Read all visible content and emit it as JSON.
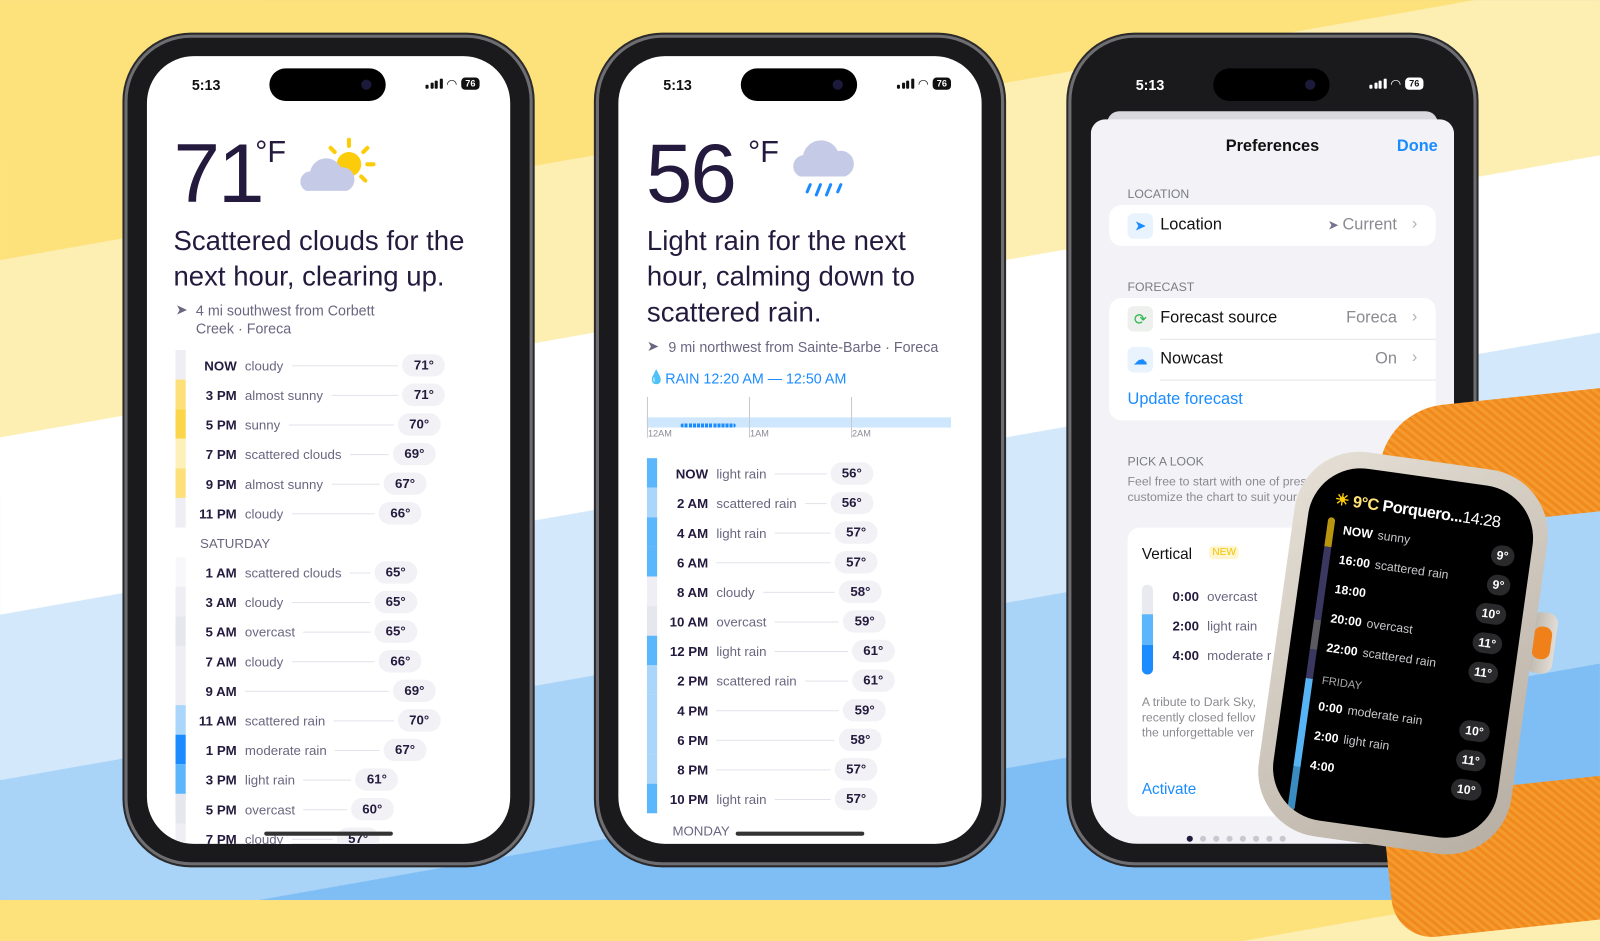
{
  "status": {
    "time": "5:13",
    "battery": "76"
  },
  "phone1": {
    "temp": "71",
    "unit": "°F",
    "icon": "partly-sunny-icon",
    "headline": "Scattered clouds for the next hour, clearing up.",
    "location_line1": "4 mi southwest from Corbett",
    "location_line2": "Creek · Foreca",
    "day_header": "SATURDAY",
    "rows": [
      {
        "time": "NOW",
        "cond": "cloudy",
        "temp": "71°",
        "color": "#eeeef4"
      },
      {
        "time": "3 PM",
        "cond": "almost sunny",
        "temp": "71°",
        "color": "#fde07a"
      },
      {
        "time": "5 PM",
        "cond": "sunny",
        "temp": "70°",
        "color": "#fcd64a"
      },
      {
        "time": "7 PM",
        "cond": "scattered clouds",
        "temp": "69°",
        "color": "#fdf0b8"
      },
      {
        "time": "9 PM",
        "cond": "almost sunny",
        "temp": "67°",
        "color": "#fde07a"
      },
      {
        "time": "11 PM",
        "cond": "cloudy",
        "temp": "66°",
        "color": "#eeeef4"
      },
      {
        "time": "1 AM",
        "cond": "scattered clouds",
        "temp": "65°",
        "color": "#f8f8fb"
      },
      {
        "time": "3 AM",
        "cond": "cloudy",
        "temp": "65°",
        "color": "#eeeef4"
      },
      {
        "time": "5 AM",
        "cond": "overcast",
        "temp": "65°",
        "color": "#e6e6ee"
      },
      {
        "time": "7 AM",
        "cond": "cloudy",
        "temp": "66°",
        "color": "#eeeef4"
      },
      {
        "time": "9 AM",
        "cond": "",
        "temp": "69°",
        "color": "#eeeef4"
      },
      {
        "time": "11 AM",
        "cond": "scattered rain",
        "temp": "70°",
        "color": "#aad6fb"
      },
      {
        "time": "1 PM",
        "cond": "moderate rain",
        "temp": "67°",
        "color": "#1a8cff"
      },
      {
        "time": "3 PM",
        "cond": "light rain",
        "temp": "61°",
        "color": "#5cb6fb"
      },
      {
        "time": "5 PM",
        "cond": "overcast",
        "temp": "60°",
        "color": "#e6e6ee"
      },
      {
        "time": "7 PM",
        "cond": "cloudy",
        "temp": "57°",
        "color": "#eeeef4"
      }
    ]
  },
  "phone2": {
    "temp": "56",
    "unit": "°F",
    "icon": "rain-cloud-icon",
    "headline": "Light rain for the next hour, calming down to scattered rain.",
    "location": "9 mi northwest from Sainte-Barbe · Foreca",
    "rain_label": "RAIN 12:20 AM — 12:50 AM",
    "nowcast_ticks": [
      "12AM",
      "1AM",
      "2AM"
    ],
    "day_header": "MONDAY",
    "rows": [
      {
        "time": "NOW",
        "cond": "light rain",
        "temp": "56°",
        "color": "#5cb6fb"
      },
      {
        "time": "2 AM",
        "cond": "scattered rain",
        "temp": "56°",
        "color": "#aad6fb"
      },
      {
        "time": "4 AM",
        "cond": "light rain",
        "temp": "57°",
        "color": "#5cb6fb"
      },
      {
        "time": "6 AM",
        "cond": "",
        "temp": "57°",
        "color": "#5cb6fb"
      },
      {
        "time": "8 AM",
        "cond": "cloudy",
        "temp": "58°",
        "color": "#eeeef4"
      },
      {
        "time": "10 AM",
        "cond": "overcast",
        "temp": "59°",
        "color": "#e6e6ee"
      },
      {
        "time": "12 PM",
        "cond": "light rain",
        "temp": "61°",
        "color": "#5cb6fb"
      },
      {
        "time": "2 PM",
        "cond": "scattered rain",
        "temp": "61°",
        "color": "#aad6fb"
      },
      {
        "time": "4 PM",
        "cond": "",
        "temp": "59°",
        "color": "#aad6fb"
      },
      {
        "time": "6 PM",
        "cond": "",
        "temp": "58°",
        "color": "#aad6fb"
      },
      {
        "time": "8 PM",
        "cond": "",
        "temp": "57°",
        "color": "#aad6fb"
      },
      {
        "time": "10 PM",
        "cond": "light rain",
        "temp": "57°",
        "color": "#5cb6fb"
      }
    ]
  },
  "prefs": {
    "title": "Preferences",
    "done": "Done",
    "location_section": "LOCATION",
    "location_label": "Location",
    "location_value": "Current",
    "forecast_section": "FORECAST",
    "source_label": "Forecast source",
    "source_value": "Foreca",
    "nowcast_label": "Nowcast",
    "nowcast_value": "On",
    "update": "Update forecast",
    "look_section": "PICK A LOOK",
    "look_desc1": "Feel free to start with one of presets, th",
    "look_desc2": "customize the chart to suit your n",
    "preset_title": "Vertical",
    "preset_badge": "NEW",
    "preset_rows": [
      {
        "time": "0:00",
        "cond": "overcast"
      },
      {
        "time": "2:00",
        "cond": "light rain"
      },
      {
        "time": "4:00",
        "cond": "moderate r"
      }
    ],
    "preset_desc1": "A tribute to Dark Sky,",
    "preset_desc2": "recently closed fellov",
    "preset_desc3": "the unforgettable ver",
    "activate": "Activate"
  },
  "watch": {
    "header_temp": "9°C",
    "header_place": "Porquero...",
    "header_time": "14:28",
    "day_header": "FRIDAY",
    "rows": [
      {
        "time": "NOW",
        "cond": "sunny",
        "temp": "9°"
      },
      {
        "time": "16:00",
        "cond": "scattered rain",
        "temp": "9°"
      },
      {
        "time": "18:00",
        "cond": "",
        "temp": "10°"
      },
      {
        "time": "20:00",
        "cond": "overcast",
        "temp": "11°"
      },
      {
        "time": "22:00",
        "cond": "scattered rain",
        "temp": "11°"
      },
      {
        "time": "0:00",
        "cond": "moderate rain",
        "temp": "10°"
      },
      {
        "time": "2:00",
        "cond": "light rain",
        "temp": "11°"
      },
      {
        "time": "4:00",
        "cond": "",
        "temp": "10°"
      }
    ]
  },
  "colors": {
    "accent": "#1a8cff",
    "text": "#241a3d",
    "sun": "#fccc0a",
    "cloud": "#c5cbe6"
  }
}
